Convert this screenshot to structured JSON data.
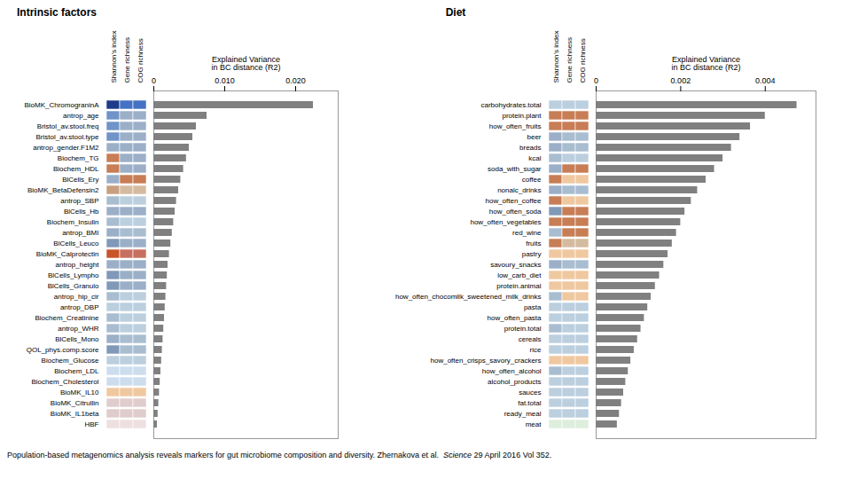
{
  "chart_data": [
    {
      "type": "bar",
      "orientation": "horizontal",
      "title": "Intrinsic factors",
      "xlabel": "Explained Variance\nin BC distance (R2)",
      "categories": [
        "BioMK_ChromograninA",
        "antrop_age",
        "Bristol_av.stool.freq",
        "Bristol_av.stool.type",
        "antrop_gender.F1M2",
        "Biochem_TG",
        "Biochem_HDL",
        "BlCells_Ery",
        "BioMK_BetaDefensin2",
        "antrop_SBP",
        "BlCells_Hb",
        "Biochem_Insulin",
        "antrop_BMI",
        "BlCells_Leuco",
        "BioMK_Calprotectin",
        "antrop_height",
        "BlCells_Lympho",
        "BlCells_Granulo",
        "antrop_hip_cir",
        "antrop_DBP",
        "Biochem_Creatinine",
        "antrop_WHR",
        "BlCells_Mono",
        "QOL_phys.comp.score",
        "Biochem_Glucose",
        "Biochem_LDL",
        "Biochem_Cholesterol",
        "BioMK_IL10",
        "BioMK_Citrullin",
        "BioMK_IL1beta",
        "HBF"
      ],
      "values": [
        0.0225,
        0.0075,
        0.006,
        0.0055,
        0.005,
        0.0046,
        0.0042,
        0.0038,
        0.0035,
        0.0032,
        0.003,
        0.0028,
        0.0026,
        0.0024,
        0.0022,
        0.002,
        0.0019,
        0.0018,
        0.0017,
        0.0016,
        0.0015,
        0.0014,
        0.0013,
        0.0012,
        0.0011,
        0.001,
        0.0009,
        0.0008,
        0.0007,
        0.0006,
        0.0005
      ],
      "color": "#808080",
      "xlim": [
        0,
        0.026
      ],
      "xticks": [
        0,
        {
          "value": 0.01,
          "label": "0.010"
        },
        {
          "value": 0.02,
          "label": "0.020"
        }
      ],
      "heatmap_columns": [
        "Shannon's index",
        "Gene richness",
        "COG richness"
      ],
      "heatmap_colors": [
        [
          "#1E3A8A",
          "#4472C4",
          "#4472C4"
        ],
        [
          "#7094C8",
          "#9BAFC8",
          "#9BAFC8"
        ],
        [
          "#7094C8",
          "#9BAFC8",
          "#9BAFC8"
        ],
        [
          "#7094C8",
          "#9BAFC8",
          "#9BAFC8"
        ],
        [
          "#9BAFC8",
          "#9BAFC8",
          "#9BAFC8"
        ],
        [
          "#C87D55",
          "#9BAFC8",
          "#9BAFC8"
        ],
        [
          "#C87D55",
          "#9BAFC8",
          "#9BAFC8"
        ],
        [
          "#9BAFC8",
          "#C87D55",
          "#C87D55"
        ],
        [
          "#C8A080",
          "#D4BBA0",
          "#D4BBA0"
        ],
        [
          "#A8BDD0",
          "#BBCFDF",
          "#BBCFDF"
        ],
        [
          "#9BAFC8",
          "#9BAFC8",
          "#9BAFC8"
        ],
        [
          "#A8BDD0",
          "#BBCFDF",
          "#BBCFDF"
        ],
        [
          "#9BAFC8",
          "#A8BDD0",
          "#A8BDD0"
        ],
        [
          "#8099B8",
          "#9BAFC8",
          "#9BAFC8"
        ],
        [
          "#C8552A",
          "#C87060",
          "#C87060"
        ],
        [
          "#9BAFC8",
          "#9BAFC8",
          "#9BAFC8"
        ],
        [
          "#8099B8",
          "#9BAFC8",
          "#9BAFC8"
        ],
        [
          "#8099B8",
          "#9BAFC8",
          "#9BAFC8"
        ],
        [
          "#A8BDD0",
          "#BBCFDF",
          "#BBCFDF"
        ],
        [
          "#BBCFDF",
          "#BBCFDF",
          "#BBCFDF"
        ],
        [
          "#A8BDD0",
          "#BBCFDF",
          "#BBCFDF"
        ],
        [
          "#A8BDD0",
          "#BBCFDF",
          "#BBCFDF"
        ],
        [
          "#9BAFC8",
          "#A8BDD0",
          "#A8BDD0"
        ],
        [
          "#8099B8",
          "#A8BDD0",
          "#A8BDD0"
        ],
        [
          "#BBCFDF",
          "#BBCFDF",
          "#BBCFDF"
        ],
        [
          "#CCDDEE",
          "#CCDDEE",
          "#CCDDEE"
        ],
        [
          "#CCDDEE",
          "#CCDDEE",
          "#CCDDEE"
        ],
        [
          "#F0C8A0",
          "#F0C8A0",
          "#F0C8A0"
        ],
        [
          "#E0CCCC",
          "#E0CCCC",
          "#E0CCCC"
        ],
        [
          "#E0CCCC",
          "#E0CCCC",
          "#E0CCCC"
        ],
        [
          "#EEE0E0",
          "#EEE0E0",
          "#EEE0E0"
        ]
      ]
    },
    {
      "type": "bar",
      "orientation": "horizontal",
      "title": "Diet",
      "xlabel": "Explained Variance\nin BC distance (R2)",
      "categories": [
        "carbohydrates.total",
        "protein.plant",
        "how_often_fruits",
        "beer",
        "breads",
        "kcal",
        "soda_with_sugar",
        "coffee",
        "nonalc_drinks",
        "how_often_coffee",
        "how_often_soda",
        "how_often_vegetables",
        "red_wine",
        "fruits",
        "pastry",
        "savoury_snacks",
        "low_carb_diet",
        "protein.animal",
        "how_often_chocomilk_sweetened_milk_drinks",
        "pasta",
        "how_often_pasta",
        "protein.total",
        "cereals",
        "rice",
        "how_often_crisps_savory_crackers",
        "how_often_alcohol",
        "alcohol_products",
        "sauces",
        "fat.total",
        "ready_meal",
        "meat"
      ],
      "values": [
        0.00475,
        0.004,
        0.00365,
        0.0034,
        0.0032,
        0.003,
        0.0028,
        0.0026,
        0.0024,
        0.00225,
        0.0021,
        0.002,
        0.0019,
        0.0018,
        0.0017,
        0.0016,
        0.0015,
        0.0014,
        0.0013,
        0.00122,
        0.00114,
        0.00106,
        0.00098,
        0.0009,
        0.00082,
        0.00076,
        0.0007,
        0.00065,
        0.0006,
        0.00055,
        0.0005
      ],
      "color": "#808080",
      "xlim": [
        0,
        0.0052
      ],
      "xticks": [
        0,
        0.002,
        0.004
      ],
      "heatmap_columns": [
        "Shannon's index",
        "Gene richness",
        "COG richness"
      ],
      "heatmap_colors": [
        [
          "#BBCFDF",
          "#BBCFDF",
          "#BBCFDF"
        ],
        [
          "#C87D55",
          "#C87D55",
          "#C87D55"
        ],
        [
          "#C87D55",
          "#C87D55",
          "#C87D55"
        ],
        [
          "#9BAFC8",
          "#A8BDD0",
          "#A8BDD0"
        ],
        [
          "#9BAFC8",
          "#A8BDD0",
          "#A8BDD0"
        ],
        [
          "#A8BDD0",
          "#BBCFDF",
          "#BBCFDF"
        ],
        [
          "#9BAFC8",
          "#C87D55",
          "#C87D55"
        ],
        [
          "#C87D55",
          "#F0C8A0",
          "#F0C8A0"
        ],
        [
          "#9BAFC8",
          "#A8BDD0",
          "#A8BDD0"
        ],
        [
          "#C87D55",
          "#F0C8A0",
          "#F0C8A0"
        ],
        [
          "#8099B8",
          "#C87D55",
          "#C87D55"
        ],
        [
          "#C87D55",
          "#C87D55",
          "#C87D55"
        ],
        [
          "#A8BDD0",
          "#C87D55",
          "#C87D55"
        ],
        [
          "#C87D55",
          "#D4BBA0",
          "#D4BBA0"
        ],
        [
          "#F0C8A0",
          "#F0C8A0",
          "#F0C8A0"
        ],
        [
          "#9BAFC8",
          "#A8BDD0",
          "#A8BDD0"
        ],
        [
          "#F0C8A0",
          "#F0C8A0",
          "#F0C8A0"
        ],
        [
          "#F0C8A0",
          "#F0C8A0",
          "#F0C8A0"
        ],
        [
          "#A8BDD0",
          "#F0C8A0",
          "#F0C8A0"
        ],
        [
          "#BBCFDF",
          "#BBCFDF",
          "#BBCFDF"
        ],
        [
          "#BBCFDF",
          "#BBCFDF",
          "#BBCFDF"
        ],
        [
          "#A8BDD0",
          "#BBCFDF",
          "#BBCFDF"
        ],
        [
          "#BBCFDF",
          "#BBCFDF",
          "#BBCFDF"
        ],
        [
          "#BBCFDF",
          "#BBCFDF",
          "#BBCFDF"
        ],
        [
          "#F0C8A0",
          "#F0C8A0",
          "#F0C8A0"
        ],
        [
          "#A8BDD0",
          "#BBCFDF",
          "#BBCFDF"
        ],
        [
          "#BBCFDF",
          "#BBCFDF",
          "#BBCFDF"
        ],
        [
          "#BBCFDF",
          "#BBCFDF",
          "#BBCFDF"
        ],
        [
          "#BBCFDF",
          "#BBCFDF",
          "#BBCFDF"
        ],
        [
          "#BBCFDF",
          "#BBCFDF",
          "#BBCFDF"
        ],
        [
          "#DDEEDD",
          "#DDEEDD",
          "#DDEEDD"
        ]
      ]
    }
  ],
  "caption": [
    "Population-based metagenomics analysis reveals markers for gut microbiome composition and diversity. Zhernakova et al.  ",
    "Science",
    " 29 April 2016 Vol 352."
  ]
}
